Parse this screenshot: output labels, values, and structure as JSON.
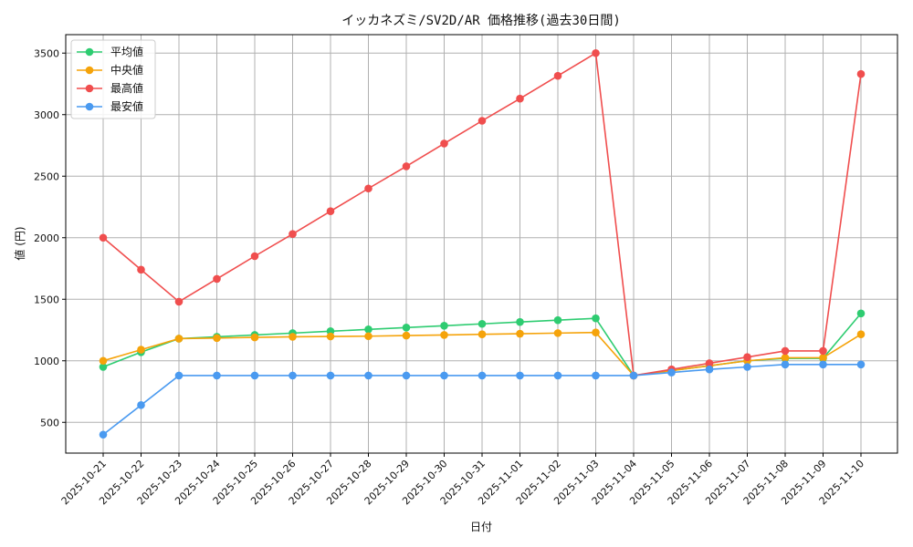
{
  "chart_data": {
    "type": "line",
    "title": "イッカネズミ/SV2D/AR 価格推移(過去30日間)",
    "xlabel": "日付",
    "ylabel": "値 (円)",
    "ylim": [
      250,
      3650
    ],
    "yticks": [
      500,
      1000,
      1500,
      2000,
      2500,
      3000,
      3500
    ],
    "grid": true,
    "legend_position": "top-left",
    "categories": [
      "2025-10-21",
      "2025-10-22",
      "2025-10-23",
      "2025-10-24",
      "2025-10-25",
      "2025-10-26",
      "2025-10-27",
      "2025-10-28",
      "2025-10-29",
      "2025-10-30",
      "2025-10-31",
      "2025-11-01",
      "2025-11-02",
      "2025-11-03",
      "2025-11-04",
      "2025-11-05",
      "2025-11-06",
      "2025-11-07",
      "2025-11-08",
      "2025-11-09",
      "2025-11-10"
    ],
    "series": [
      {
        "name": "平均値",
        "color": "#2ecc71",
        "values": [
          950,
          1070,
          1180,
          1195,
          1210,
          1225,
          1240,
          1255,
          1270,
          1285,
          1300,
          1315,
          1330,
          1345,
          880,
          920,
          960,
          1000,
          1020,
          1020,
          1385
        ]
      },
      {
        "name": "中央値",
        "color": "#f5a30a",
        "values": [
          1000,
          1090,
          1180,
          1185,
          1190,
          1195,
          1198,
          1200,
          1205,
          1210,
          1215,
          1220,
          1225,
          1230,
          880,
          920,
          960,
          1000,
          1025,
          1025,
          1215
        ]
      },
      {
        "name": "最高値",
        "color": "#f04e4e",
        "values": [
          2000,
          1740,
          1480,
          1665,
          1850,
          2030,
          2215,
          2400,
          2580,
          2765,
          2950,
          3130,
          3315,
          3500,
          880,
          930,
          980,
          1030,
          1080,
          1080,
          3330
        ]
      },
      {
        "name": "最安値",
        "color": "#4a9af0",
        "values": [
          400,
          640,
          880,
          880,
          880,
          880,
          880,
          880,
          880,
          880,
          880,
          880,
          880,
          880,
          880,
          905,
          930,
          950,
          970,
          970,
          970
        ]
      }
    ]
  }
}
